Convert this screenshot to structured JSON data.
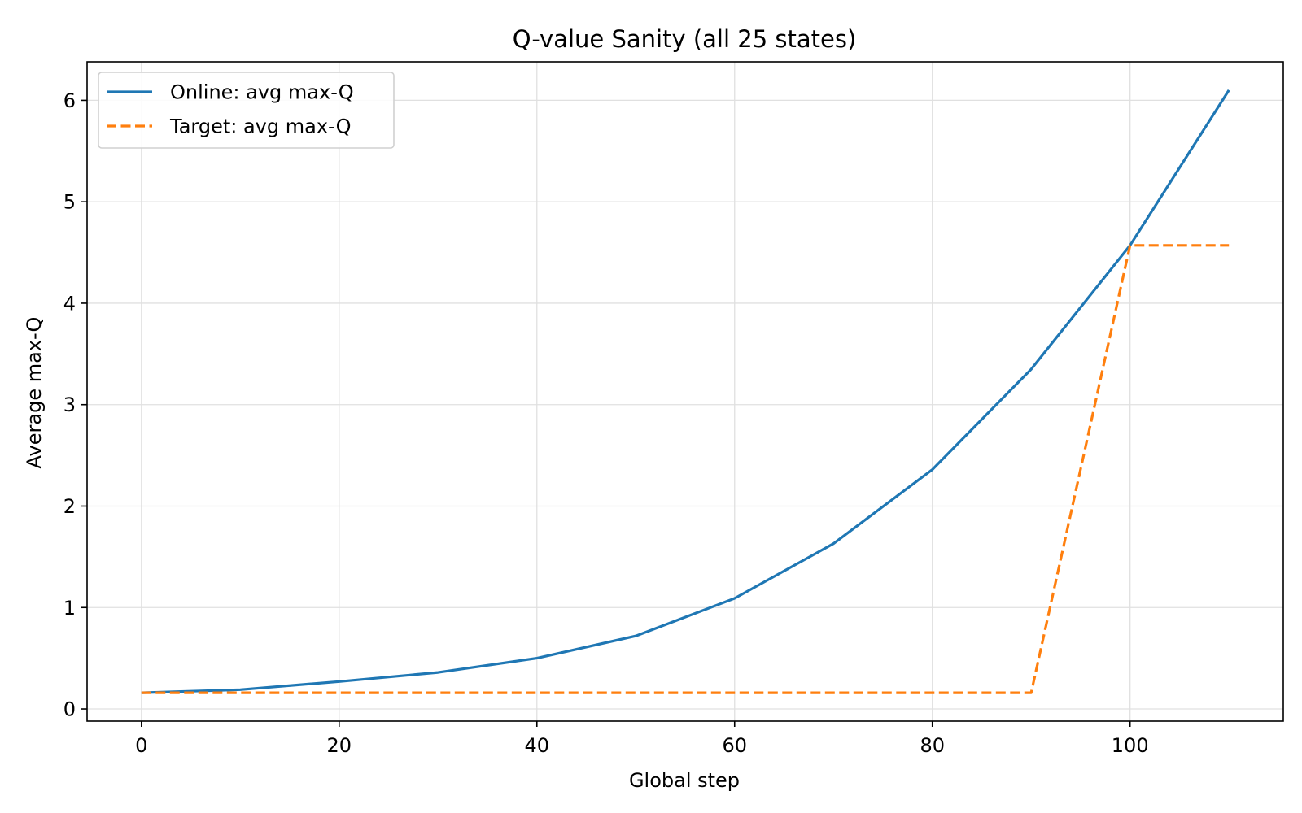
{
  "chart_data": {
    "type": "line",
    "title": "Q-value Sanity (all 25 states)",
    "xlabel": "Global step",
    "ylabel": "Average max-Q",
    "xlim": [
      -5.5,
      115.5
    ],
    "ylim": [
      -0.12,
      6.38
    ],
    "x_ticks": [
      0,
      20,
      40,
      60,
      80,
      100
    ],
    "y_ticks": [
      0,
      1,
      2,
      3,
      4,
      5,
      6
    ],
    "grid": true,
    "legend_position": "upper-left",
    "series": [
      {
        "name": "Online: avg max-Q",
        "color": "#1f77b4",
        "style": "solid",
        "x": [
          0,
          10,
          20,
          30,
          40,
          50,
          60,
          70,
          80,
          90,
          100,
          110
        ],
        "y": [
          0.16,
          0.19,
          0.27,
          0.36,
          0.5,
          0.72,
          1.09,
          1.63,
          2.36,
          3.35,
          4.57,
          6.1
        ]
      },
      {
        "name": "Target: avg max-Q",
        "color": "#ff7f0e",
        "style": "dashed",
        "x": [
          0,
          10,
          20,
          30,
          40,
          50,
          60,
          70,
          80,
          90,
          100,
          110
        ],
        "y": [
          0.16,
          0.16,
          0.16,
          0.16,
          0.16,
          0.16,
          0.16,
          0.16,
          0.16,
          0.16,
          4.57,
          4.57
        ]
      }
    ]
  }
}
